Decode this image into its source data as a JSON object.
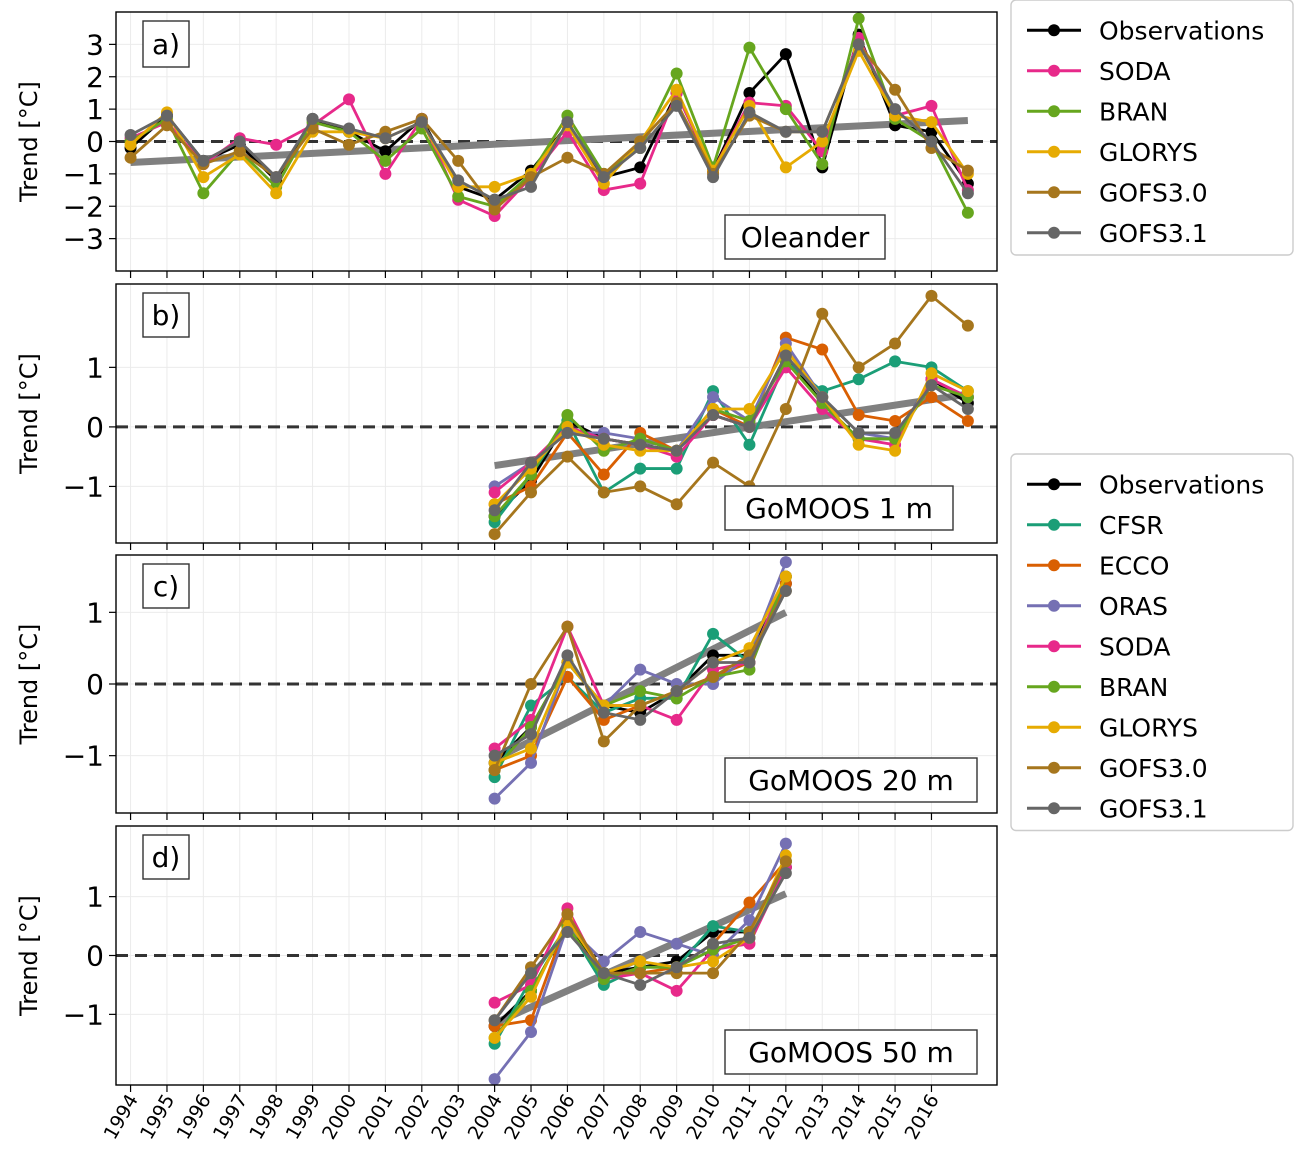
{
  "x_tick_labels": [
    "1994",
    "1995",
    "1996",
    "1997",
    "1998",
    "1999",
    "2000",
    "2001",
    "2002",
    "2003",
    "2004",
    "2005",
    "2006",
    "2007",
    "2008",
    "2009",
    "2010",
    "2011",
    "2012",
    "2013",
    "2014",
    "2015",
    "2016"
  ],
  "colors": {
    "Observations": "#000000",
    "CFSR": "#1b9e77",
    "ECCO": "#d95f02",
    "ORAS": "#7570b3",
    "SODA": "#e7298a",
    "BRAN": "#66a61e",
    "GLORYS": "#e6ab02",
    "GOFS3.0": "#a6761d",
    "GOFS3.1": "#666666",
    "trend_line": "#808080"
  },
  "legend_top": [
    "Observations",
    "SODA",
    "BRAN",
    "GLORYS",
    "GOFS3.0",
    "GOFS3.1"
  ],
  "legend_bottom": [
    "Observations",
    "CFSR",
    "ECCO",
    "ORAS",
    "SODA",
    "BRAN",
    "GLORYS",
    "GOFS3.0",
    "GOFS3.1"
  ],
  "chart_data": [
    {
      "type": "line",
      "panel_label": "a)",
      "station_label": "Oleander",
      "ylabel": "Trend [$^oC$]",
      "ylabel_text": "Trend [°C]",
      "ylim": [
        -4.0,
        4.0
      ],
      "yticks": [
        -3,
        -2,
        -1,
        0,
        1,
        2,
        3
      ],
      "ytick_labels": [
        "−3",
        "−2",
        "−1",
        "0",
        "1",
        "2",
        "3"
      ],
      "x": [
        1994,
        1995,
        1996,
        1997,
        1998,
        1999,
        2000,
        2001,
        2002,
        2003,
        2004,
        2005,
        2006,
        2007,
        2008,
        2009,
        2010,
        2011,
        2012,
        2013,
        2014,
        2015,
        2016,
        2017
      ],
      "trend_line": {
        "x": [
          1994,
          2017
        ],
        "y": [
          -0.65,
          0.65
        ]
      },
      "series": [
        {
          "name": "Observations",
          "values": [
            -0.2,
            0.8,
            -0.6,
            -0.1,
            -1.2,
            0.7,
            0.3,
            -0.3,
            0.7,
            -1.4,
            -1.8,
            -0.9,
            0.5,
            -1.1,
            -0.8,
            1.5,
            -0.9,
            1.5,
            2.7,
            -0.8,
            3.3,
            0.5,
            0.3,
            -1.3
          ]
        },
        {
          "name": "SODA",
          "values": [
            0.1,
            0.6,
            -0.7,
            0.1,
            -0.1,
            0.5,
            1.3,
            -1.0,
            0.7,
            -1.8,
            -2.3,
            -1.1,
            0.3,
            -1.5,
            -1.3,
            1.5,
            -0.9,
            1.2,
            1.1,
            -0.3,
            3.2,
            0.8,
            1.1,
            -1.5
          ]
        },
        {
          "name": "BRAN",
          "values": [
            0.0,
            0.7,
            -1.6,
            -0.3,
            -1.4,
            0.6,
            0.3,
            -0.6,
            0.4,
            -1.7,
            -2.0,
            -1.0,
            0.8,
            -1.0,
            -0.2,
            2.1,
            -0.8,
            2.9,
            1.0,
            -0.7,
            3.8,
            0.7,
            0.0,
            -2.2
          ]
        },
        {
          "name": "GLORYS",
          "values": [
            -0.1,
            0.9,
            -1.1,
            -0.4,
            -1.6,
            0.3,
            0.3,
            0.1,
            0.6,
            -1.4,
            -1.4,
            -1.0,
            0.5,
            -1.3,
            0.0,
            1.6,
            -0.9,
            1.1,
            -0.8,
            0.0,
            2.8,
            0.8,
            0.6,
            -1.0
          ]
        },
        {
          "name": "GOFS3.0",
          "values": [
            -0.5,
            0.5,
            -0.7,
            -0.3,
            -1.1,
            0.4,
            -0.1,
            0.3,
            0.7,
            -0.6,
            -2.1,
            -1.1,
            -0.5,
            -1.0,
            0.0,
            1.2,
            -1.0,
            0.8,
            0.3,
            0.3,
            3.0,
            1.6,
            -0.2,
            -0.9
          ]
        },
        {
          "name": "GOFS3.1",
          "values": [
            0.2,
            0.8,
            -0.6,
            0.0,
            -1.1,
            0.7,
            0.4,
            0.1,
            0.6,
            -1.2,
            -1.8,
            -1.4,
            0.6,
            -1.1,
            -0.2,
            1.1,
            -1.1,
            0.9,
            0.3,
            0.3,
            3.0,
            1.0,
            0.0,
            -1.6
          ]
        }
      ]
    },
    {
      "type": "line",
      "panel_label": "b)",
      "station_label": "GoMOOS 1 m",
      "ylabel_text": "Trend [°C]",
      "ylim": [
        -1.95,
        2.4
      ],
      "yticks": [
        -1,
        0,
        1
      ],
      "ytick_labels": [
        "−1",
        "0",
        "1"
      ],
      "x": [
        2004,
        2005,
        2006,
        2007,
        2008,
        2009,
        2010,
        2011,
        2012,
        2013,
        2014,
        2015,
        2016,
        2017
      ],
      "trend_line": {
        "x": [
          2004,
          2017
        ],
        "y": [
          -0.65,
          0.55
        ]
      },
      "series": [
        {
          "name": "Observations",
          "values": [
            -1.5,
            -0.9,
            0.1,
            -0.2,
            -0.3,
            -0.4,
            0.2,
            0.0,
            1.2,
            0.4,
            -0.2,
            -0.2,
            0.8,
            0.4
          ]
        },
        {
          "name": "CFSR",
          "values": [
            -1.6,
            -0.8,
            0.1,
            -1.1,
            -0.7,
            -0.7,
            0.6,
            -0.3,
            1.1,
            0.6,
            0.8,
            1.1,
            1.0,
            0.6
          ]
        },
        {
          "name": "ECCO",
          "values": [
            -1.3,
            -1.0,
            -0.1,
            -0.8,
            -0.1,
            -0.4,
            0.3,
            0.0,
            1.5,
            1.3,
            0.2,
            0.1,
            0.5,
            0.1
          ]
        },
        {
          "name": "ORAS",
          "values": [
            -1.0,
            -0.6,
            -0.1,
            -0.1,
            -0.2,
            -0.4,
            0.5,
            0.1,
            1.4,
            0.5,
            -0.1,
            -0.2,
            0.8,
            0.5
          ]
        },
        {
          "name": "SODA",
          "values": [
            -1.1,
            -0.6,
            0.0,
            -0.2,
            -0.3,
            -0.5,
            0.2,
            0.0,
            1.0,
            0.3,
            -0.2,
            -0.3,
            0.8,
            0.5
          ]
        },
        {
          "name": "BRAN",
          "values": [
            -1.5,
            -0.8,
            0.2,
            -0.4,
            -0.2,
            -0.4,
            0.3,
            0.1,
            1.1,
            0.4,
            -0.2,
            -0.2,
            0.7,
            0.5
          ]
        },
        {
          "name": "GLORYS",
          "values": [
            -1.3,
            -0.7,
            0.0,
            -0.3,
            -0.4,
            -0.4,
            0.3,
            0.3,
            1.3,
            0.5,
            -0.3,
            -0.4,
            0.9,
            0.6
          ]
        },
        {
          "name": "GOFS3.0",
          "values": [
            -1.8,
            -1.1,
            -0.5,
            -1.1,
            -1.0,
            -1.3,
            -0.6,
            -1.0,
            0.3,
            1.9,
            1.0,
            1.4,
            2.2,
            1.7
          ]
        },
        {
          "name": "GOFS3.1",
          "values": [
            -1.4,
            -0.6,
            -0.1,
            -0.2,
            -0.3,
            -0.4,
            0.2,
            0.0,
            1.2,
            0.5,
            -0.1,
            -0.1,
            0.7,
            0.3
          ]
        }
      ]
    },
    {
      "type": "line",
      "panel_label": "c)",
      "station_label": "GoMOOS 20 m",
      "ylabel_text": "Trend [°C]",
      "ylim": [
        -1.8,
        1.8
      ],
      "yticks": [
        -1,
        0,
        1
      ],
      "ytick_labels": [
        "−1",
        "0",
        "1"
      ],
      "x": [
        2004,
        2005,
        2006,
        2007,
        2008,
        2009,
        2010,
        2011,
        2012
      ],
      "trend_line": {
        "x": [
          2004,
          2012
        ],
        "y": [
          -1.05,
          1.0
        ]
      },
      "series": [
        {
          "name": "Observations",
          "values": [
            -1.1,
            -0.6,
            0.3,
            -0.3,
            -0.4,
            -0.1,
            0.4,
            0.4,
            1.4
          ]
        },
        {
          "name": "CFSR",
          "values": [
            -1.3,
            -0.3,
            0.1,
            -0.4,
            -0.2,
            -0.2,
            0.7,
            0.3,
            1.5
          ]
        },
        {
          "name": "ECCO",
          "values": [
            -1.2,
            -1.0,
            0.1,
            -0.5,
            -0.3,
            -0.1,
            0.1,
            0.3,
            1.4
          ]
        },
        {
          "name": "ORAS",
          "values": [
            -1.6,
            -1.1,
            0.3,
            -0.3,
            0.2,
            0.0,
            0.0,
            0.4,
            1.7
          ]
        },
        {
          "name": "SODA",
          "values": [
            -0.9,
            -0.5,
            0.8,
            -0.3,
            -0.3,
            -0.5,
            0.2,
            0.3,
            1.5
          ]
        },
        {
          "name": "BRAN",
          "values": [
            -1.2,
            -0.6,
            0.3,
            -0.3,
            -0.1,
            -0.2,
            0.1,
            0.2,
            1.5
          ]
        },
        {
          "name": "GLORYS",
          "values": [
            -1.1,
            -0.9,
            0.3,
            -0.3,
            -0.3,
            -0.1,
            0.3,
            0.5,
            1.5
          ]
        },
        {
          "name": "GOFS3.0",
          "values": [
            -1.2,
            0.0,
            0.8,
            -0.8,
            -0.3,
            -0.1,
            0.1,
            0.4,
            1.3
          ]
        },
        {
          "name": "GOFS3.1",
          "values": [
            -1.0,
            -0.7,
            0.4,
            -0.4,
            -0.5,
            -0.1,
            0.3,
            0.3,
            1.3
          ]
        }
      ]
    },
    {
      "type": "line",
      "panel_label": "d)",
      "station_label": "GoMOOS 50 m",
      "ylabel_text": "Trend [°C]",
      "ylim": [
        -2.2,
        2.2
      ],
      "yticks": [
        -1,
        0,
        1
      ],
      "ytick_labels": [
        "−1",
        "0",
        "1"
      ],
      "x": [
        2004,
        2005,
        2006,
        2007,
        2008,
        2009,
        2010,
        2011,
        2012
      ],
      "trend_line": {
        "x": [
          2004,
          2012
        ],
        "y": [
          -1.15,
          1.05
        ]
      },
      "series": [
        {
          "name": "Observations",
          "values": [
            -1.2,
            -0.6,
            0.5,
            -0.3,
            -0.2,
            -0.1,
            0.4,
            0.4,
            1.5
          ]
        },
        {
          "name": "CFSR",
          "values": [
            -1.5,
            -0.4,
            0.5,
            -0.5,
            -0.2,
            -0.2,
            0.5,
            0.4,
            1.6
          ]
        },
        {
          "name": "ECCO",
          "values": [
            -1.2,
            -1.1,
            0.6,
            -0.3,
            -0.3,
            -0.2,
            0.2,
            0.9,
            1.6
          ]
        },
        {
          "name": "ORAS",
          "values": [
            -2.1,
            -1.3,
            0.5,
            -0.1,
            0.4,
            0.2,
            0.0,
            0.6,
            1.9
          ]
        },
        {
          "name": "SODA",
          "values": [
            -0.8,
            -0.5,
            0.8,
            -0.4,
            -0.3,
            -0.6,
            0.1,
            0.2,
            1.5
          ]
        },
        {
          "name": "BRAN",
          "values": [
            -1.4,
            -0.6,
            0.5,
            -0.4,
            -0.2,
            -0.2,
            0.1,
            0.3,
            1.6
          ]
        },
        {
          "name": "GLORYS",
          "values": [
            -1.4,
            -0.7,
            0.6,
            -0.3,
            -0.1,
            -0.2,
            -0.1,
            0.3,
            1.7
          ]
        },
        {
          "name": "GOFS3.0",
          "values": [
            -1.1,
            -0.2,
            0.7,
            -0.3,
            -0.3,
            -0.3,
            -0.3,
            0.4,
            1.6
          ]
        },
        {
          "name": "GOFS3.1",
          "values": [
            -1.1,
            -0.3,
            0.4,
            -0.3,
            -0.5,
            -0.2,
            0.2,
            0.3,
            1.4
          ]
        }
      ]
    }
  ]
}
